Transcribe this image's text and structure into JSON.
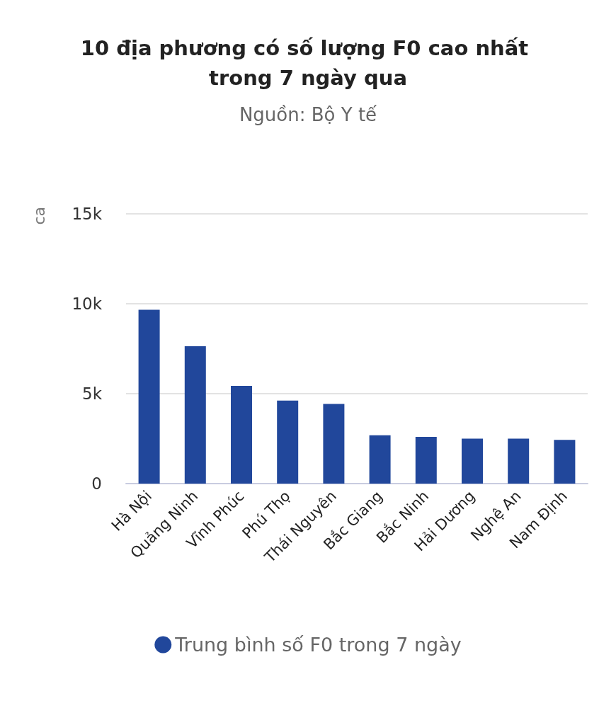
{
  "chart_data": {
    "type": "bar",
    "title": "10 địa phương có số lượng F0 cao nhất trong 7 ngày qua",
    "subtitle": "Nguồn: Bộ Y tế",
    "ylabel": "ca",
    "categories": [
      "Hà Nội",
      "Quảng Ninh",
      "Vĩnh Phúc",
      "Phú Thọ",
      "Thái Nguyên",
      "Bắc Giang",
      "Bắc Ninh",
      "Hải Dương",
      "Nghệ An",
      "Nam Định"
    ],
    "series": [
      {
        "name": "Trung bình số F0 trong 7 ngày",
        "color": "#21479b",
        "values": [
          9670,
          7640,
          5430,
          4620,
          4430,
          2690,
          2600,
          2500,
          2500,
          2430
        ]
      }
    ],
    "ylim": [
      0,
      15000
    ],
    "yticks": [
      {
        "value": 0,
        "label": "0"
      },
      {
        "value": 5000,
        "label": "5k"
      },
      {
        "value": 10000,
        "label": "10k"
      },
      {
        "value": 15000,
        "label": "15k"
      }
    ],
    "grid": "y",
    "legend": "bottom"
  }
}
